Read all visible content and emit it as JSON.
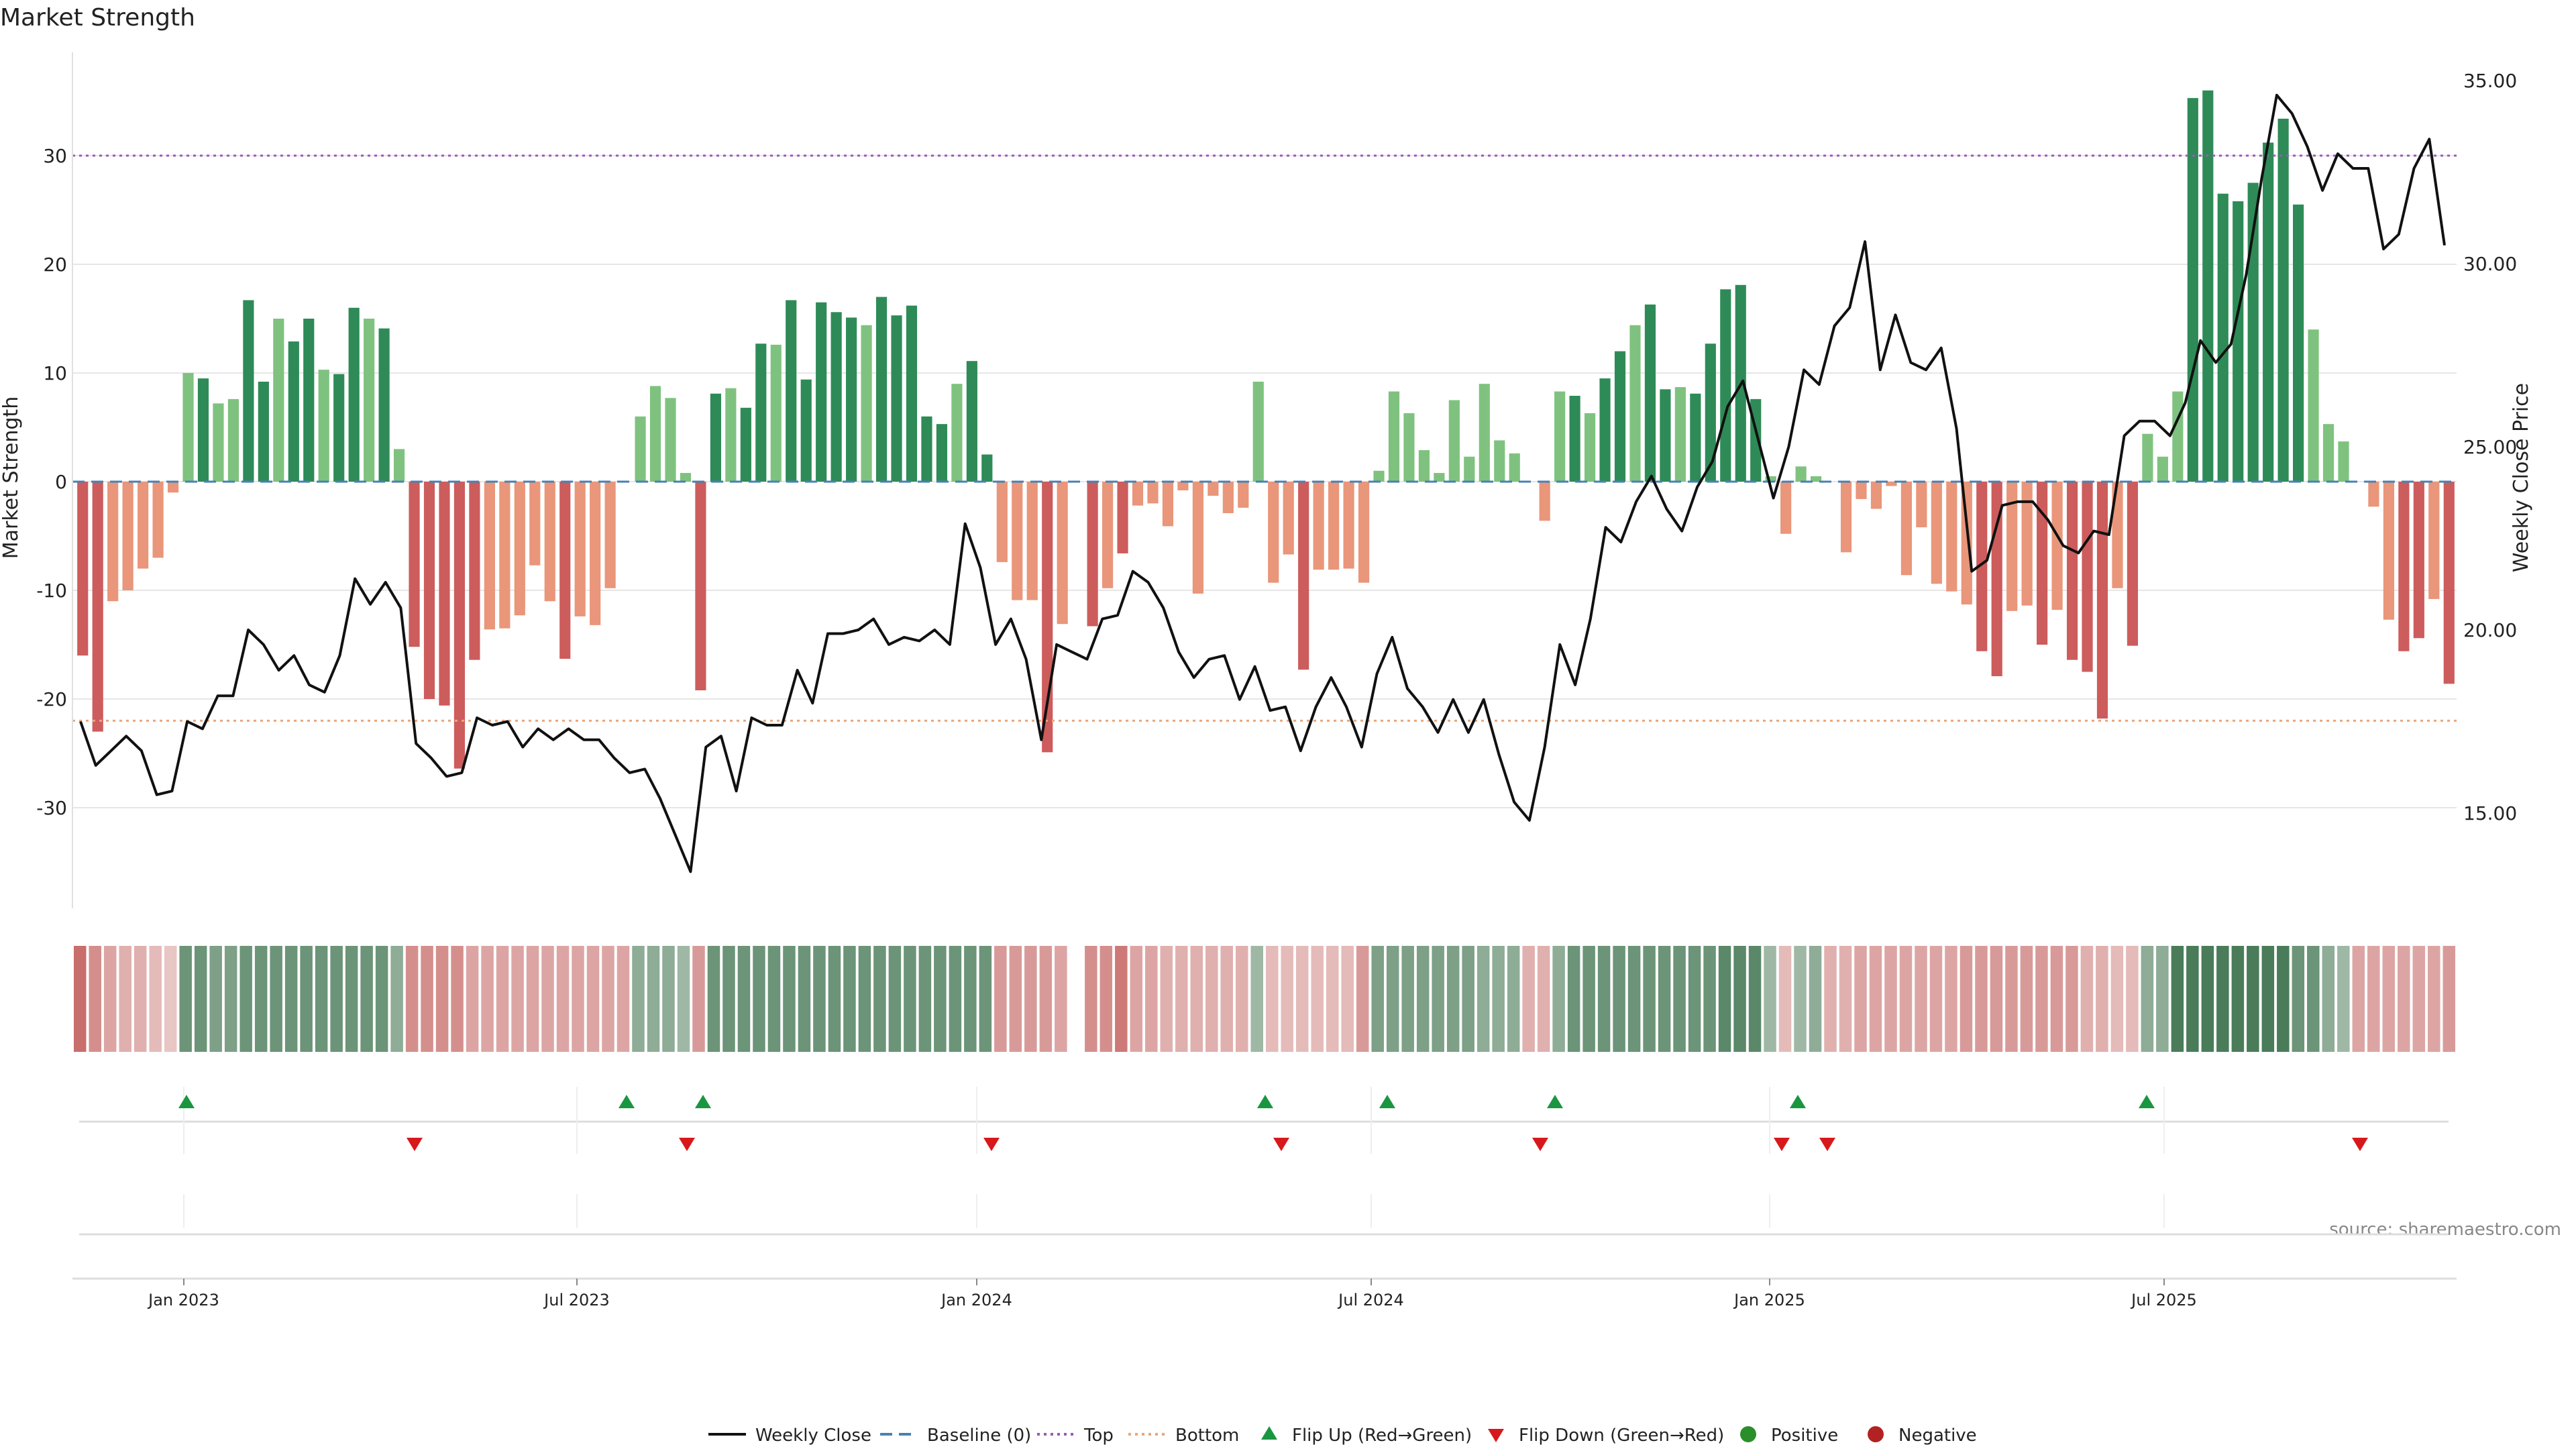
{
  "chart_data": {
    "type": "bar",
    "title": "Market Strength",
    "ylabel": "Market Strength",
    "y2label": "Weekly Close Price",
    "ylim": [
      -39,
      40
    ],
    "y_ticks": [
      30,
      20,
      10,
      0,
      -10,
      -20,
      -30
    ],
    "y2lim": [
      12.5,
      36
    ],
    "y2_ticks": [
      "35.00",
      "30.00",
      "25.00",
      "20.00",
      "15.00"
    ],
    "x_ticks": [
      "Jan 2023",
      "Jul 2023",
      "Jan 2024",
      "Jul 2024",
      "Jan 2025",
      "Jul 2025"
    ],
    "top_level": 30,
    "bottom_level": -22,
    "source": "source: sharemaestro.com",
    "legend": [
      {
        "label": "Weekly Close",
        "key": "weekly_close"
      },
      {
        "label": "Baseline (0)",
        "key": "baseline"
      },
      {
        "label": "Top",
        "key": "top"
      },
      {
        "label": "Bottom",
        "key": "bottom"
      },
      {
        "label": "Flip Up (Red→Green)",
        "key": "flip_up"
      },
      {
        "label": "Flip Down (Green→Red)",
        "key": "flip_down"
      },
      {
        "label": "Positive",
        "key": "positive"
      },
      {
        "label": "Negative",
        "key": "negative"
      }
    ],
    "colors": {
      "pos_dark": "#2e8b57",
      "pos_light": "#7fc27f",
      "neg_dark": "#cd5c5c",
      "neg_light": "#e9967a",
      "line": "#111111",
      "baseline": "#4682b4",
      "top": "#9b59b6",
      "bottom": "#e9a77a",
      "flip_up": "#1a9641",
      "flip_down": "#d7191c",
      "positive": "#2a8f2a",
      "negative": "#b22222",
      "grid": "#e6e6e6"
    },
    "strength": [
      -16,
      -23,
      -11,
      -10,
      -8,
      -7,
      -1,
      10,
      9.5,
      7.2,
      7.6,
      16.7,
      9.2,
      15,
      12.9,
      15,
      10.3,
      9.9,
      16,
      15,
      14.1,
      3,
      -15.2,
      -20,
      -20.6,
      -26.4,
      -16.4,
      -13.6,
      -13.5,
      -12.3,
      -7.7,
      -11,
      -16.3,
      -12.4,
      -13.2,
      -9.8,
      0,
      6,
      8.8,
      7.7,
      0.8,
      -19.2,
      8.1,
      8.6,
      6.8,
      12.7,
      12.6,
      16.7,
      9.4,
      16.5,
      15.6,
      15.1,
      14.4,
      17,
      15.3,
      16.2,
      6,
      5.3,
      9,
      11.1,
      2.5,
      -7.4,
      -10.9,
      -10.9,
      -24.9,
      -13.1,
      0,
      -13.3,
      -9.8,
      -6.6,
      -2.2,
      -2,
      -4.1,
      -0.8,
      -10.3,
      -1.3,
      -2.9,
      -2.4,
      9.2,
      -9.3,
      -6.7,
      -17.3,
      -8.1,
      -8.1,
      -8,
      -9.3,
      1,
      8.3,
      6.3,
      2.9,
      0.8,
      7.5,
      2.3,
      9,
      3.8,
      2.6,
      0,
      -3.6,
      8.3,
      7.9,
      6.3,
      9.5,
      12,
      14.4,
      16.3,
      8.5,
      8.7,
      8.1,
      12.7,
      17.7,
      18.1,
      7.6,
      0.5,
      -4.8,
      1.4,
      0.5,
      0,
      -6.5,
      -1.6,
      -2.5,
      -0.4,
      -8.6,
      -4.2,
      -9.4,
      -10.1,
      -11.3,
      -15.6,
      -17.9,
      -11.9,
      -11.4,
      -15,
      -11.8,
      -16.4,
      -17.5,
      -21.8,
      -9.8,
      -15.1,
      4.4,
      2.3,
      8.3,
      35.3,
      36,
      26.5,
      25.8,
      27.5,
      31.2,
      33.4,
      25.5,
      14,
      5.3,
      3.7,
      0,
      -2.3,
      -12.7,
      -15.6,
      -14.4,
      -10.8,
      -18.6
    ],
    "shade": [
      1,
      0.7,
      0.5,
      0.4,
      0.4,
      0.3,
      0.2,
      0.6,
      0.6,
      0.5,
      0.5,
      0.6,
      0.6,
      0.6,
      0.6,
      0.6,
      0.6,
      0.6,
      0.6,
      0.6,
      0.6,
      0.4,
      0.7,
      0.7,
      0.7,
      0.7,
      0.5,
      0.5,
      0.5,
      0.5,
      0.5,
      0.5,
      0.5,
      0.5,
      0.5,
      0.5,
      0.5,
      0.4,
      0.4,
      0.4,
      0.3,
      0.6,
      0.6,
      0.6,
      0.6,
      0.6,
      0.6,
      0.6,
      0.6,
      0.6,
      0.6,
      0.6,
      0.6,
      0.6,
      0.6,
      0.6,
      0.6,
      0.6,
      0.6,
      0.6,
      0.6,
      0.6,
      0.6,
      0.6,
      0.6,
      0.5,
      0.5,
      0.7,
      0.7,
      0.9,
      0.5,
      0.5,
      0.4,
      0.4,
      0.4,
      0.4,
      0.4,
      0.4,
      0.3,
      0.3,
      0.3,
      0.3,
      0.3,
      0.3,
      0.3,
      0.6,
      0.5,
      0.5,
      0.5,
      0.5,
      0.5,
      0.5,
      0.5,
      0.4,
      0.4,
      0.4,
      0.4,
      0.4,
      0.4,
      0.6,
      0.6,
      0.6,
      0.6,
      0.6,
      0.6,
      0.6,
      0.6,
      0.6,
      0.6,
      0.7,
      0.7,
      0.7,
      0.3,
      0.3,
      0.3,
      0.4,
      0.4,
      0.4,
      0.5,
      0.5,
      0.5,
      0.5,
      0.5,
      0.5,
      0.5,
      0.6,
      0.6,
      0.6,
      0.6,
      0.6,
      0.6,
      0.6,
      0.6,
      0.4,
      0.4,
      0.3,
      0.3,
      0.4,
      0.4,
      0.8,
      0.8,
      0.8,
      0.8,
      0.8,
      0.8,
      0.8,
      0.8,
      0.6,
      0.6,
      0.4,
      0.3,
      0.5,
      0.5,
      0.5,
      0.5,
      0.5,
      0.5,
      0.6
    ],
    "close": [
      17.5,
      16.3,
      16.7,
      17.1,
      16.7,
      15.5,
      15.6,
      17.5,
      17.3,
      18.2,
      18.2,
      20,
      19.6,
      18.9,
      19.3,
      18.5,
      18.3,
      19.3,
      21.4,
      20.7,
      21.3,
      20.6,
      16.9,
      16.5,
      16,
      16.1,
      17.6,
      17.4,
      17.5,
      16.8,
      17.3,
      17,
      17.3,
      17,
      17,
      16.5,
      16.1,
      16.2,
      15.4,
      14.4,
      13.4,
      16.8,
      17.1,
      15.6,
      17.6,
      17.4,
      17.4,
      18.9,
      18,
      19.9,
      19.9,
      20,
      20.3,
      19.6,
      19.8,
      19.7,
      20,
      19.6,
      22.9,
      21.7,
      19.6,
      20.3,
      19.2,
      17,
      19.6,
      19.4,
      19.2,
      20.3,
      20.4,
      21.6,
      21.3,
      20.6,
      19.4,
      18.7,
      19.2,
      19.3,
      18.1,
      19,
      17.8,
      17.9,
      16.7,
      17.9,
      18.7,
      17.9,
      16.8,
      18.8,
      19.8,
      18.4,
      17.9,
      17.2,
      18.1,
      17.2,
      18.1,
      16.6,
      15.3,
      14.8,
      16.8,
      19.6,
      18.5,
      20.3,
      22.8,
      22.4,
      23.5,
      24.2,
      23.3,
      22.7,
      23.9,
      24.6,
      26.1,
      26.8,
      25.2,
      23.6,
      25,
      27.1,
      26.7,
      28.3,
      28.8,
      30.6,
      27.1,
      28.6,
      27.3,
      27.1,
      27.7,
      25.5,
      21.6,
      21.9,
      23.4,
      23.5,
      23.5,
      23,
      22.3,
      22.1,
      22.7,
      22.6,
      25.3,
      25.7,
      25.7,
      25.3,
      26.2,
      27.9,
      27.3,
      27.8,
      29.7,
      32.3,
      34.6,
      34.1,
      33.2,
      32,
      33,
      32.6,
      32.6,
      30.4,
      30.8,
      32.6,
      33.4,
      30.5
    ],
    "flip_up": [
      "Jan 2023",
      "Aug 2023",
      "Sep 2023",
      "Jun 2024",
      "Aug 2024",
      "Oct 2024",
      "Feb 2025",
      "Jul 2025"
    ],
    "flip_down": [
      "May 2023",
      "Aug 2023",
      "Jan 2024",
      "Jun 2024",
      "Oct 2024",
      "Jan 2025",
      "Feb 2025",
      "Oct 2025"
    ]
  }
}
